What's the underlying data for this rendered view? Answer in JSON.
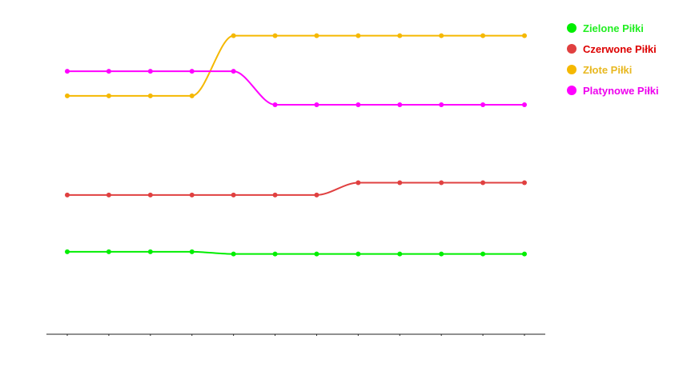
{
  "chart_data": {
    "type": "line",
    "curve": "smooth",
    "markers": true,
    "grid": false,
    "legend_position": "top-right",
    "y_axis_visible": false,
    "ylim": [
      0,
      3000
    ],
    "x": [
      1,
      2,
      3,
      4,
      5,
      6,
      7,
      8,
      9,
      10,
      11,
      12
    ],
    "series": [
      {
        "name": "Zielone Piłki",
        "color": "#00ee00",
        "label_color": "#22ee22",
        "values": [
          740,
          740,
          740,
          740,
          720,
          720,
          720,
          720,
          720,
          720,
          720,
          720
        ]
      },
      {
        "name": "Czerwone Piłki",
        "color": "#e04040",
        "label_color": "#dd0000",
        "values": [
          1250,
          1250,
          1250,
          1250,
          1250,
          1250,
          1250,
          1360,
          1360,
          1360,
          1360,
          1360
        ]
      },
      {
        "name": "Złote Piłki",
        "color": "#f5b800",
        "label_color": "#e8b820",
        "values": [
          2140,
          2140,
          2140,
          2140,
          2680,
          2680,
          2680,
          2680,
          2680,
          2680,
          2680,
          2680
        ]
      },
      {
        "name": "Platynowe Piłki",
        "color": "#ff00ff",
        "label_color": "#ee00ee",
        "values": [
          2360,
          2360,
          2360,
          2360,
          2360,
          2060,
          2060,
          2060,
          2060,
          2060,
          2060,
          2060
        ]
      }
    ]
  }
}
